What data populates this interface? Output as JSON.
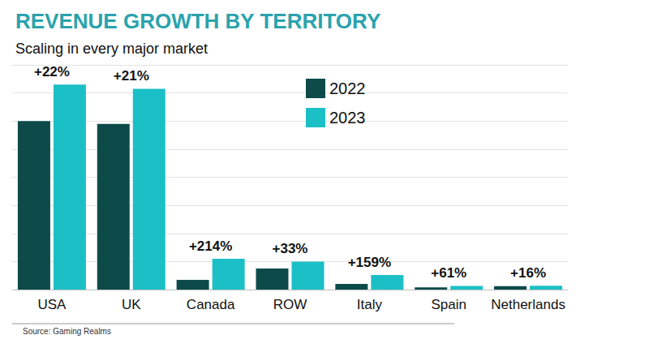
{
  "chart_data": {
    "type": "bar",
    "title": "REVENUE GROWTH BY TERRITORY",
    "subtitle": "Scaling in every major market",
    "source": "Source: Gaming Realms",
    "categories": [
      "USA",
      "UK",
      "Canada",
      "ROW",
      "Italy",
      "Spain",
      "Netherlands"
    ],
    "series": [
      {
        "name": "2022",
        "color": "#0d4b4b",
        "values": [
          6.0,
          5.9,
          0.35,
          0.75,
          0.2,
          0.08,
          0.12
        ]
      },
      {
        "name": "2023",
        "color": "#1bc0c6",
        "values": [
          7.3,
          7.15,
          1.1,
          1.0,
          0.52,
          0.13,
          0.14
        ]
      }
    ],
    "annotations": [
      "+22%",
      "+21%",
      "+214%",
      "+33%",
      "+159%",
      "+61%",
      "+16%"
    ],
    "ylim": [
      0,
      8
    ],
    "yticks": [
      0,
      1,
      2,
      3,
      4,
      5,
      6,
      7,
      8
    ],
    "grid": true,
    "tick_labels": "x",
    "legend": "top"
  }
}
